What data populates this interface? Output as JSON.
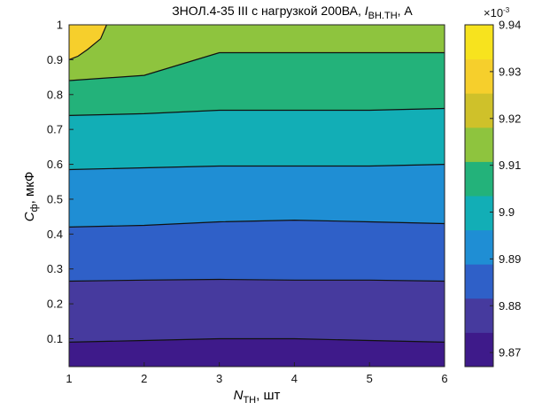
{
  "chart_data": {
    "type": "heatmap",
    "subtype": "filled-contour",
    "title": {
      "prefix": "ЗНОЛ.4-35 III с нагрузкой 200ВА, ",
      "symbol": "I",
      "subscript": "ВН.ТН",
      "suffix": ", А"
    },
    "xlabel": {
      "symbol": "N",
      "subscript": "ТН",
      "suffix": ", шт"
    },
    "ylabel": {
      "symbol": "C",
      "subscript": "ф",
      "suffix": ", мкФ"
    },
    "xlim": [
      1,
      6
    ],
    "ylim": [
      0.02,
      1.0
    ],
    "xticks": [
      "1",
      "2",
      "3",
      "4",
      "5",
      "6"
    ],
    "yticks": [
      "0.1",
      "0.2",
      "0.3",
      "0.4",
      "0.5",
      "0.6",
      "0.7",
      "0.8",
      "0.9",
      "1"
    ],
    "colorbar": {
      "exponent_label": "×10",
      "exponent_power": "-3",
      "ticks": [
        "9.87",
        "9.88",
        "9.89",
        "9.9",
        "9.91",
        "9.92",
        "9.93",
        "9.94"
      ],
      "range": [
        9.867,
        9.94
      ]
    },
    "colormap": [
      "#3e1a8a",
      "#463a9e",
      "#2f60c8",
      "#1f8ed4",
      "#12aeb6",
      "#23b27a",
      "#8ec43e",
      "#cfc12a",
      "#f6cf2c",
      "#f7e31e"
    ],
    "levels": [
      {
        "range": [
          9.865,
          9.875
        ],
        "color": "#3e1a8a"
      },
      {
        "range": [
          9.875,
          9.885
        ],
        "color": "#463a9e"
      },
      {
        "range": [
          9.885,
          9.895
        ],
        "color": "#2f60c8"
      },
      {
        "range": [
          9.895,
          9.905
        ],
        "color": "#1f8ed4"
      },
      {
        "range": [
          9.905,
          9.915
        ],
        "color": "#12aeb6"
      },
      {
        "range": [
          9.915,
          9.925
        ],
        "color": "#23b27a"
      },
      {
        "range": [
          9.925,
          9.935
        ],
        "color": "#8ec43e"
      },
      {
        "range": [
          9.935,
          9.945
        ],
        "color": "#f6cf2c"
      }
    ],
    "contour_boundaries": [
      {
        "level": 9.87,
        "points": [
          [
            1,
            0.09
          ],
          [
            2,
            0.095
          ],
          [
            3,
            0.1
          ],
          [
            4,
            0.1
          ],
          [
            5,
            0.095
          ],
          [
            6,
            0.09
          ]
        ]
      },
      {
        "level": 9.88,
        "points": [
          [
            1,
            0.265
          ],
          [
            2,
            0.268
          ],
          [
            3,
            0.27
          ],
          [
            4,
            0.268
          ],
          [
            5,
            0.268
          ],
          [
            6,
            0.265
          ]
        ]
      },
      {
        "level": 9.89,
        "points": [
          [
            1,
            0.42
          ],
          [
            2,
            0.425
          ],
          [
            3,
            0.435
          ],
          [
            4,
            0.44
          ],
          [
            5,
            0.435
          ],
          [
            6,
            0.43
          ]
        ]
      },
      {
        "level": 9.9,
        "points": [
          [
            1,
            0.585
          ],
          [
            2,
            0.59
          ],
          [
            3,
            0.595
          ],
          [
            4,
            0.595
          ],
          [
            5,
            0.595
          ],
          [
            6,
            0.6
          ]
        ]
      },
      {
        "level": 9.91,
        "points": [
          [
            1,
            0.74
          ],
          [
            2,
            0.745
          ],
          [
            3,
            0.755
          ],
          [
            4,
            0.755
          ],
          [
            5,
            0.755
          ],
          [
            6,
            0.76
          ]
        ]
      },
      {
        "level": 9.92,
        "points": [
          [
            1,
            0.84
          ],
          [
            2,
            0.855
          ],
          [
            3,
            0.92
          ],
          [
            4,
            0.92
          ],
          [
            5,
            0.92
          ],
          [
            6,
            0.92
          ]
        ]
      },
      {
        "level": 9.93,
        "points": [
          [
            1.0,
            0.9
          ],
          [
            1.12,
            0.91
          ],
          [
            1.25,
            0.93
          ],
          [
            1.42,
            0.96
          ],
          [
            1.5,
            1.0
          ]
        ]
      }
    ]
  }
}
